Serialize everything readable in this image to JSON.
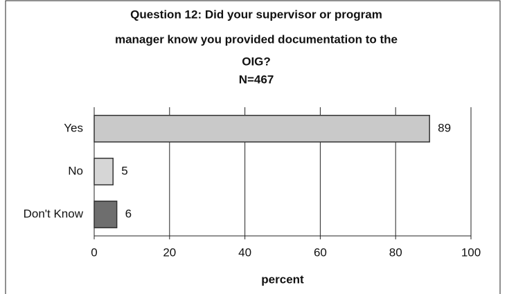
{
  "chart_data": {
    "type": "hbar",
    "title": [
      "Question 12:  Did your supervisor or program",
      "manager know you provided documentation to the",
      "OIG?"
    ],
    "subtitle": "N=467",
    "categories": [
      "Yes",
      "No",
      "Don't Know"
    ],
    "values": [
      89,
      5,
      6
    ],
    "colors": [
      "#c9c9c9",
      "#d6d6d6",
      "#6e6e6e"
    ],
    "xlabel": "percent",
    "xlim": [
      0,
      100
    ],
    "xticks": [
      0,
      20,
      40,
      60,
      80,
      100
    ],
    "grid": true
  }
}
